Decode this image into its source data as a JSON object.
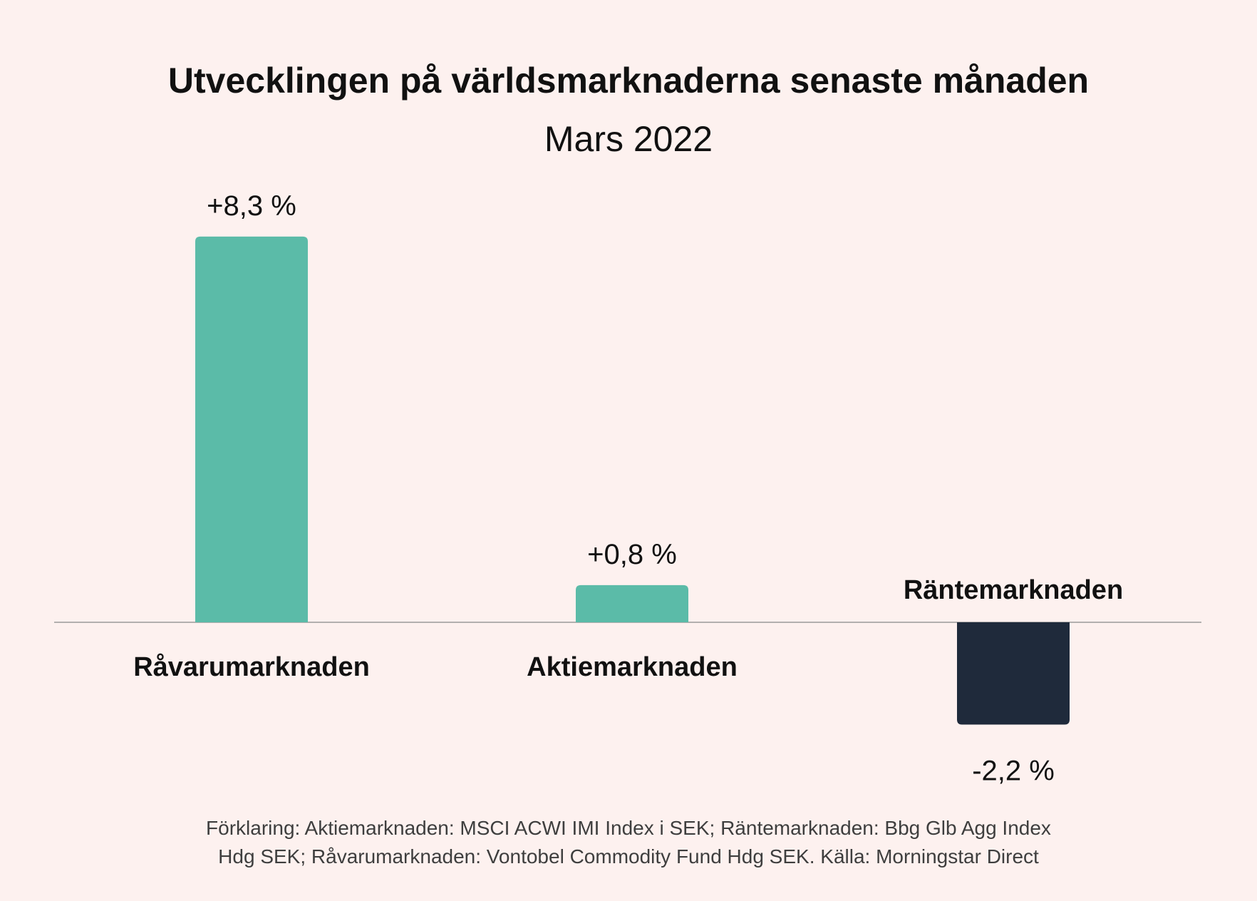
{
  "colors": {
    "positive": "#5bbba8",
    "negative": "#1f2a3b",
    "background": "#fdf1ef",
    "axis": "#9a9a9a",
    "text": "#111111",
    "footnote": "#3e3e3e"
  },
  "chart_data": {
    "type": "bar",
    "title": "Utvecklingen på världsmarknaderna senaste månaden",
    "subtitle": "Mars 2022",
    "categories": [
      "Råvarumarknaden",
      "Aktiemarknaden",
      "Räntemarknaden"
    ],
    "values": [
      8.3,
      0.8,
      -2.2
    ],
    "value_labels": [
      "+8,3 %",
      "+0,8 %",
      "-2,2 %"
    ],
    "unit": "%",
    "grid": false,
    "legend": "none",
    "footnote": [
      "Förklaring: Aktiemarknaden: MSCI ACWI IMI Index i SEK; Räntemarknaden: Bbg Glb Agg Index",
      "Hdg SEK; Råvarumarknaden: Vontobel Commodity Fund Hdg SEK. Källa: Morningstar Direct"
    ]
  }
}
